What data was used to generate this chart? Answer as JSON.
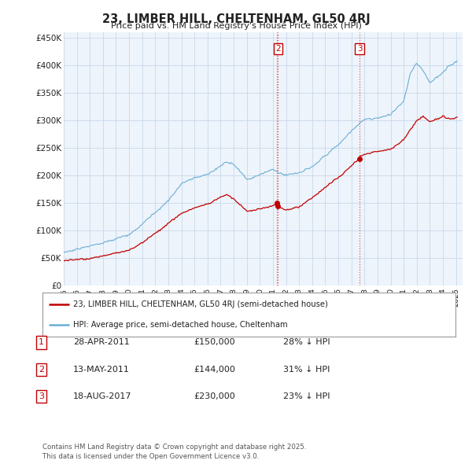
{
  "title": "23, LIMBER HILL, CHELTENHAM, GL50 4RJ",
  "subtitle": "Price paid vs. HM Land Registry's House Price Index (HPI)",
  "xlim_start": 1995.0,
  "xlim_end": 2025.5,
  "ylim_min": 0,
  "ylim_max": 460000,
  "yticks": [
    0,
    50000,
    100000,
    150000,
    200000,
    250000,
    300000,
    350000,
    400000,
    450000
  ],
  "ytick_labels": [
    "£0",
    "£50K",
    "£100K",
    "£150K",
    "£200K",
    "£250K",
    "£300K",
    "£350K",
    "£400K",
    "£450K"
  ],
  "xticks": [
    1995,
    1996,
    1997,
    1998,
    1999,
    2000,
    2001,
    2002,
    2003,
    2004,
    2005,
    2006,
    2007,
    2008,
    2009,
    2010,
    2011,
    2012,
    2013,
    2014,
    2015,
    2016,
    2017,
    2018,
    2019,
    2020,
    2021,
    2022,
    2023,
    2024,
    2025
  ],
  "hpi_color": "#6baed6",
  "price_color": "#c00000",
  "vline_color": "#e06060",
  "chart_bg": "#eef4fb",
  "transaction_markers": [
    {
      "id": 1,
      "date_num": 2011.28,
      "price": 150000,
      "label": "1",
      "show_box": false
    },
    {
      "id": 2,
      "date_num": 2011.37,
      "price": 144000,
      "label": "2",
      "show_box": true
    },
    {
      "id": 3,
      "date_num": 2017.62,
      "price": 230000,
      "label": "3",
      "show_box": true
    }
  ],
  "table_rows": [
    {
      "num": "1",
      "date": "28-APR-2011",
      "price": "£150,000",
      "hpi": "28% ↓ HPI"
    },
    {
      "num": "2",
      "date": "13-MAY-2011",
      "price": "£144,000",
      "hpi": "31% ↓ HPI"
    },
    {
      "num": "3",
      "date": "18-AUG-2017",
      "price": "£230,000",
      "hpi": "23% ↓ HPI"
    }
  ],
  "legend_line1": "23, LIMBER HILL, CHELTENHAM, GL50 4RJ (semi-detached house)",
  "legend_line2": "HPI: Average price, semi-detached house, Cheltenham",
  "footer": "Contains HM Land Registry data © Crown copyright and database right 2025.\nThis data is licensed under the Open Government Licence v3.0.",
  "bg_color": "#ffffff",
  "grid_color": "#c8d8e8",
  "font_color": "#222222"
}
